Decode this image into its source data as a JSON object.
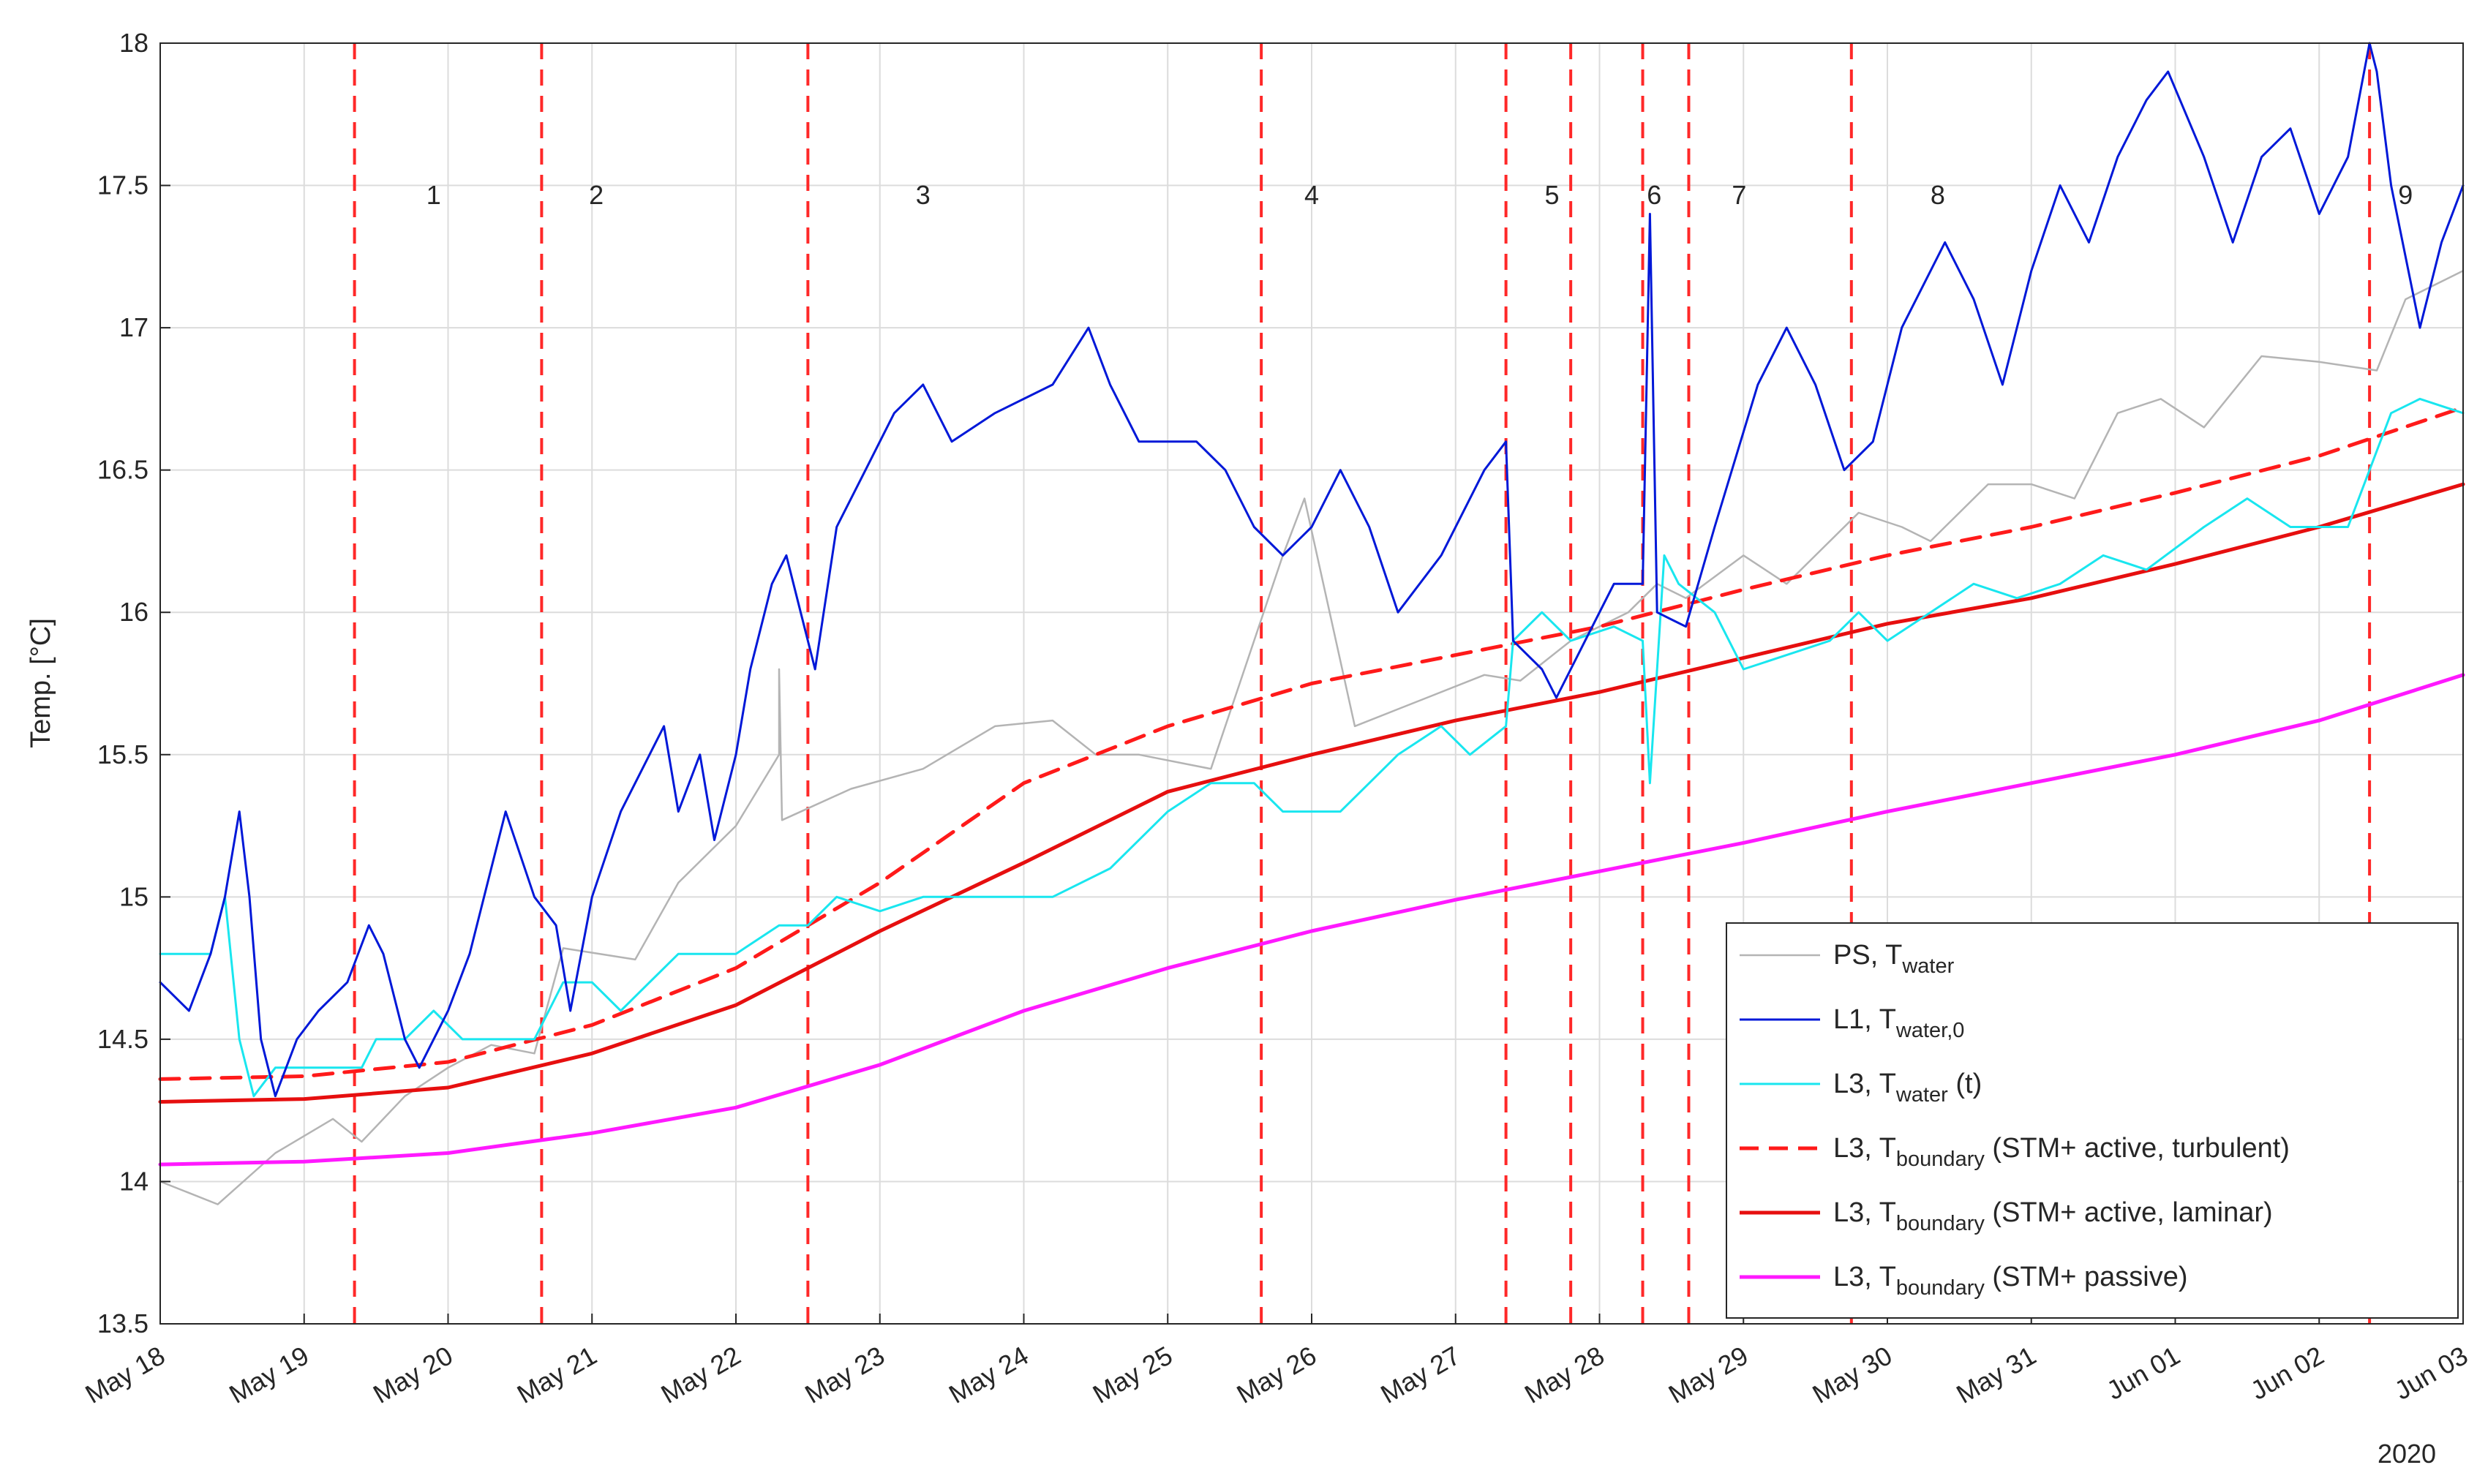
{
  "chart_data": {
    "type": "line",
    "ylabel": "Temp. [°C]",
    "ylim": [
      13.5,
      18
    ],
    "yticks": [
      "13.5",
      "14",
      "14.5",
      "15",
      "15.5",
      "16",
      "16.5",
      "17",
      "17.5",
      "18"
    ],
    "xlim_days": [
      0,
      16
    ],
    "xticks": [
      "May 18",
      "May 19",
      "May 20",
      "May 21",
      "May 22",
      "May 23",
      "May 24",
      "May 25",
      "May 26",
      "May 27",
      "May 28",
      "May 29",
      "May 30",
      "May 31",
      "Jun 01",
      "Jun 02",
      "Jun 03"
    ],
    "xyear": "2020",
    "grid": true,
    "legend_position": "bottom-right",
    "colors": {
      "ps": "#b4b4b4",
      "l1": "#0018d8",
      "l3": "#19e6ef",
      "turbulent": "#ff1a1a",
      "laminar": "#e60f0f",
      "passive": "#ff19ff",
      "segment": "#ff2828",
      "grid": "#dcdcdc"
    },
    "segment_lines": [
      1.35,
      2.65,
      4.5,
      7.65,
      9.35,
      9.8,
      10.3,
      10.62,
      11.75,
      15.35
    ],
    "segment_labels": [
      {
        "label": "1",
        "x": 1.9
      },
      {
        "label": "2",
        "x": 3.03
      },
      {
        "label": "3",
        "x": 5.3
      },
      {
        "label": "4",
        "x": 8.0
      },
      {
        "label": "5",
        "x": 9.67
      },
      {
        "label": "6",
        "x": 10.38
      },
      {
        "label": "7",
        "x": 10.97
      },
      {
        "label": "8",
        "x": 12.35
      },
      {
        "label": "9",
        "x": 15.6
      }
    ],
    "segment_label_y": 17.47,
    "series": [
      {
        "key": "ps",
        "legend_main": "PS, T",
        "legend_sub": "water",
        "legend_tail": "",
        "dashed": false,
        "width": 2.5,
        "points": [
          [
            0,
            14.0
          ],
          [
            0.4,
            13.92
          ],
          [
            0.8,
            14.1
          ],
          [
            1.2,
            14.22
          ],
          [
            1.4,
            14.14
          ],
          [
            1.7,
            14.3
          ],
          [
            2.0,
            14.4
          ],
          [
            2.3,
            14.48
          ],
          [
            2.6,
            14.45
          ],
          [
            2.8,
            14.82
          ],
          [
            3.3,
            14.78
          ],
          [
            3.6,
            15.05
          ],
          [
            4.0,
            15.25
          ],
          [
            4.3,
            15.5
          ],
          [
            4.3,
            15.8
          ],
          [
            4.32,
            15.27
          ],
          [
            4.8,
            15.38
          ],
          [
            5.3,
            15.45
          ],
          [
            5.8,
            15.6
          ],
          [
            6.2,
            15.62
          ],
          [
            6.5,
            15.5
          ],
          [
            6.8,
            15.5
          ],
          [
            7.3,
            15.45
          ],
          [
            7.8,
            16.2
          ],
          [
            7.95,
            16.4
          ],
          [
            8.3,
            15.6
          ],
          [
            8.8,
            15.7
          ],
          [
            9.2,
            15.78
          ],
          [
            9.45,
            15.76
          ],
          [
            9.8,
            15.9
          ],
          [
            10.2,
            16.0
          ],
          [
            10.4,
            16.1
          ],
          [
            10.6,
            16.05
          ],
          [
            11.0,
            16.2
          ],
          [
            11.3,
            16.1
          ],
          [
            11.8,
            16.35
          ],
          [
            12.1,
            16.3
          ],
          [
            12.3,
            16.25
          ],
          [
            12.7,
            16.45
          ],
          [
            13.0,
            16.45
          ],
          [
            13.3,
            16.4
          ],
          [
            13.6,
            16.7
          ],
          [
            13.9,
            16.75
          ],
          [
            14.2,
            16.65
          ],
          [
            14.6,
            16.9
          ],
          [
            15.0,
            16.88
          ],
          [
            15.4,
            16.85
          ],
          [
            15.6,
            17.1
          ],
          [
            16,
            17.2
          ]
        ]
      },
      {
        "key": "l1",
        "legend_main": "L1, T",
        "legend_sub": "water,0",
        "legend_tail": "",
        "dashed": false,
        "width": 3,
        "points": [
          [
            0,
            14.7
          ],
          [
            0.2,
            14.6
          ],
          [
            0.35,
            14.8
          ],
          [
            0.45,
            15.0
          ],
          [
            0.55,
            15.3
          ],
          [
            0.62,
            15.0
          ],
          [
            0.7,
            14.5
          ],
          [
            0.8,
            14.3
          ],
          [
            0.95,
            14.5
          ],
          [
            1.1,
            14.6
          ],
          [
            1.3,
            14.7
          ],
          [
            1.45,
            14.9
          ],
          [
            1.55,
            14.8
          ],
          [
            1.7,
            14.5
          ],
          [
            1.8,
            14.4
          ],
          [
            2.0,
            14.6
          ],
          [
            2.15,
            14.8
          ],
          [
            2.3,
            15.1
          ],
          [
            2.4,
            15.3
          ],
          [
            2.6,
            15.0
          ],
          [
            2.75,
            14.9
          ],
          [
            2.85,
            14.6
          ],
          [
            3.0,
            15.0
          ],
          [
            3.2,
            15.3
          ],
          [
            3.4,
            15.5
          ],
          [
            3.5,
            15.6
          ],
          [
            3.6,
            15.3
          ],
          [
            3.75,
            15.5
          ],
          [
            3.85,
            15.2
          ],
          [
            4.0,
            15.5
          ],
          [
            4.1,
            15.8
          ],
          [
            4.25,
            16.1
          ],
          [
            4.35,
            16.2
          ],
          [
            4.45,
            16.0
          ],
          [
            4.55,
            15.8
          ],
          [
            4.7,
            16.3
          ],
          [
            4.9,
            16.5
          ],
          [
            5.1,
            16.7
          ],
          [
            5.3,
            16.8
          ],
          [
            5.5,
            16.6
          ],
          [
            5.8,
            16.7
          ],
          [
            6.2,
            16.8
          ],
          [
            6.45,
            17.0
          ],
          [
            6.6,
            16.8
          ],
          [
            6.8,
            16.6
          ],
          [
            7.2,
            16.6
          ],
          [
            7.4,
            16.5
          ],
          [
            7.6,
            16.3
          ],
          [
            7.8,
            16.2
          ],
          [
            8.0,
            16.3
          ],
          [
            8.2,
            16.5
          ],
          [
            8.4,
            16.3
          ],
          [
            8.6,
            16.0
          ],
          [
            8.9,
            16.2
          ],
          [
            9.2,
            16.5
          ],
          [
            9.35,
            16.6
          ],
          [
            9.4,
            15.9
          ],
          [
            9.6,
            15.8
          ],
          [
            9.7,
            15.7
          ],
          [
            9.9,
            15.9
          ],
          [
            10.1,
            16.1
          ],
          [
            10.3,
            16.1
          ],
          [
            10.35,
            17.4
          ],
          [
            10.4,
            16.0
          ],
          [
            10.6,
            15.95
          ],
          [
            10.8,
            16.3
          ],
          [
            11.1,
            16.8
          ],
          [
            11.3,
            17.0
          ],
          [
            11.5,
            16.8
          ],
          [
            11.7,
            16.5
          ],
          [
            11.9,
            16.6
          ],
          [
            12.1,
            17.0
          ],
          [
            12.4,
            17.3
          ],
          [
            12.6,
            17.1
          ],
          [
            12.8,
            16.8
          ],
          [
            13.0,
            17.2
          ],
          [
            13.2,
            17.5
          ],
          [
            13.4,
            17.3
          ],
          [
            13.6,
            17.6
          ],
          [
            13.8,
            17.8
          ],
          [
            13.95,
            17.9
          ],
          [
            14.2,
            17.6
          ],
          [
            14.4,
            17.3
          ],
          [
            14.6,
            17.6
          ],
          [
            14.8,
            17.7
          ],
          [
            15.0,
            17.4
          ],
          [
            15.2,
            17.6
          ],
          [
            15.35,
            18.0
          ],
          [
            15.4,
            17.9
          ],
          [
            15.5,
            17.5
          ],
          [
            15.7,
            17.0
          ],
          [
            15.85,
            17.3
          ],
          [
            16.0,
            17.5
          ]
        ]
      },
      {
        "key": "l3",
        "legend_main": "L3, T",
        "legend_sub": "water",
        "legend_tail": "(t)",
        "dashed": false,
        "width": 3,
        "points": [
          [
            0,
            14.8
          ],
          [
            0.35,
            14.8
          ],
          [
            0.45,
            15.0
          ],
          [
            0.55,
            14.5
          ],
          [
            0.65,
            14.3
          ],
          [
            0.8,
            14.4
          ],
          [
            1.2,
            14.4
          ],
          [
            1.4,
            14.4
          ],
          [
            1.5,
            14.5
          ],
          [
            1.7,
            14.5
          ],
          [
            1.9,
            14.6
          ],
          [
            2.1,
            14.5
          ],
          [
            2.6,
            14.5
          ],
          [
            2.8,
            14.7
          ],
          [
            3.0,
            14.7
          ],
          [
            3.2,
            14.6
          ],
          [
            3.4,
            14.7
          ],
          [
            3.6,
            14.8
          ],
          [
            4.0,
            14.8
          ],
          [
            4.3,
            14.9
          ],
          [
            4.5,
            14.9
          ],
          [
            4.7,
            15.0
          ],
          [
            5.0,
            14.95
          ],
          [
            5.3,
            15.0
          ],
          [
            5.8,
            15.0
          ],
          [
            6.2,
            15.0
          ],
          [
            6.6,
            15.1
          ],
          [
            7.0,
            15.3
          ],
          [
            7.3,
            15.4
          ],
          [
            7.6,
            15.4
          ],
          [
            7.8,
            15.3
          ],
          [
            8.2,
            15.3
          ],
          [
            8.4,
            15.4
          ],
          [
            8.6,
            15.5
          ],
          [
            8.9,
            15.6
          ],
          [
            9.1,
            15.5
          ],
          [
            9.35,
            15.6
          ],
          [
            9.4,
            15.9
          ],
          [
            9.6,
            16.0
          ],
          [
            9.8,
            15.9
          ],
          [
            10.1,
            15.95
          ],
          [
            10.3,
            15.9
          ],
          [
            10.35,
            15.4
          ],
          [
            10.45,
            16.2
          ],
          [
            10.55,
            16.1
          ],
          [
            10.8,
            16.0
          ],
          [
            11.0,
            15.8
          ],
          [
            11.3,
            15.85
          ],
          [
            11.6,
            15.9
          ],
          [
            11.8,
            16.0
          ],
          [
            12.0,
            15.9
          ],
          [
            12.3,
            16.0
          ],
          [
            12.6,
            16.1
          ],
          [
            12.9,
            16.05
          ],
          [
            13.2,
            16.1
          ],
          [
            13.5,
            16.2
          ],
          [
            13.8,
            16.15
          ],
          [
            14.2,
            16.3
          ],
          [
            14.5,
            16.4
          ],
          [
            14.8,
            16.3
          ],
          [
            15.2,
            16.3
          ],
          [
            15.35,
            16.5
          ],
          [
            15.5,
            16.7
          ],
          [
            15.7,
            16.75
          ],
          [
            16.0,
            16.7
          ]
        ]
      },
      {
        "key": "turbulent",
        "legend_main": "L3, T",
        "legend_sub": "boundary",
        "legend_tail": "(STM+ active, turbulent)",
        "dashed": true,
        "width": 5,
        "points": [
          [
            0,
            14.36
          ],
          [
            1.0,
            14.37
          ],
          [
            2.0,
            14.42
          ],
          [
            3.0,
            14.55
          ],
          [
            4.0,
            14.75
          ],
          [
            5.0,
            15.05
          ],
          [
            6.0,
            15.4
          ],
          [
            7.0,
            15.6
          ],
          [
            8.0,
            15.75
          ],
          [
            9.0,
            15.85
          ],
          [
            10.0,
            15.95
          ],
          [
            11.0,
            16.08
          ],
          [
            12.0,
            16.2
          ],
          [
            13.0,
            16.3
          ],
          [
            14.0,
            16.42
          ],
          [
            15.0,
            16.55
          ],
          [
            16.0,
            16.72
          ]
        ]
      },
      {
        "key": "laminar",
        "legend_main": "L3, T",
        "legend_sub": "boundary",
        "legend_tail": "(STM+ active, laminar)",
        "dashed": false,
        "width": 5,
        "points": [
          [
            0,
            14.28
          ],
          [
            1.0,
            14.29
          ],
          [
            2.0,
            14.33
          ],
          [
            3.0,
            14.45
          ],
          [
            4.0,
            14.62
          ],
          [
            5.0,
            14.88
          ],
          [
            6.0,
            15.12
          ],
          [
            7.0,
            15.37
          ],
          [
            8.0,
            15.5
          ],
          [
            9.0,
            15.62
          ],
          [
            10.0,
            15.72
          ],
          [
            11.0,
            15.84
          ],
          [
            12.0,
            15.96
          ],
          [
            13.0,
            16.05
          ],
          [
            14.0,
            16.17
          ],
          [
            15.0,
            16.3
          ],
          [
            16.0,
            16.45
          ]
        ]
      },
      {
        "key": "passive",
        "legend_main": "L3, T",
        "legend_sub": "boundary",
        "legend_tail": "(STM+ passive)",
        "dashed": false,
        "width": 5,
        "points": [
          [
            0,
            14.06
          ],
          [
            1.0,
            14.07
          ],
          [
            2.0,
            14.1
          ],
          [
            3.0,
            14.17
          ],
          [
            4.0,
            14.26
          ],
          [
            5.0,
            14.41
          ],
          [
            6.0,
            14.6
          ],
          [
            7.0,
            14.75
          ],
          [
            8.0,
            14.88
          ],
          [
            9.0,
            14.99
          ],
          [
            10.0,
            15.09
          ],
          [
            11.0,
            15.19
          ],
          [
            12.0,
            15.3
          ],
          [
            13.0,
            15.4
          ],
          [
            14.0,
            15.5
          ],
          [
            15.0,
            15.62
          ],
          [
            16.0,
            15.78
          ]
        ]
      }
    ]
  }
}
